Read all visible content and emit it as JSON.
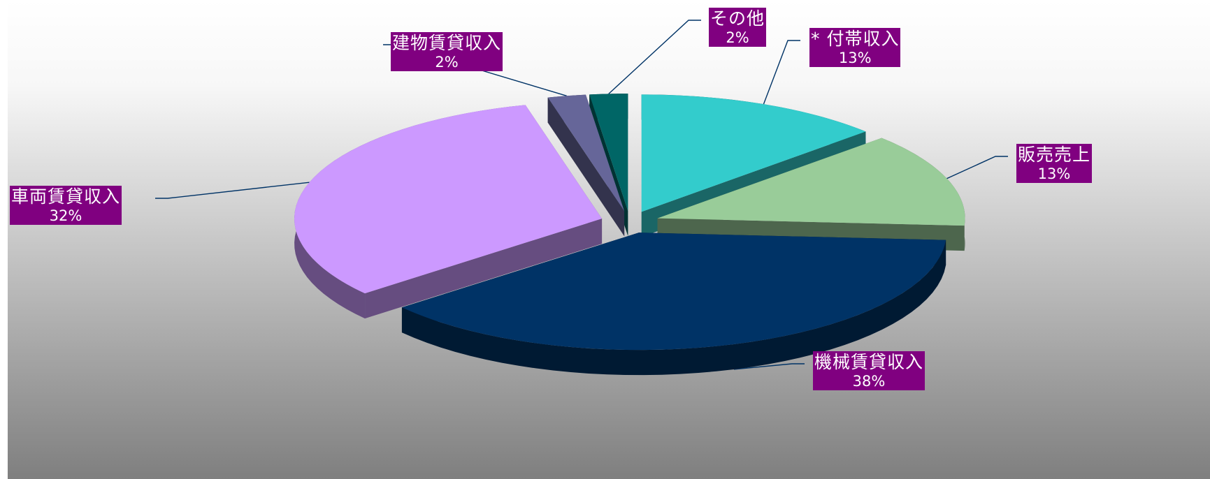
{
  "chart_data": {
    "type": "pie",
    "title": "",
    "slices": [
      {
        "label": "* 付帯収入",
        "percent": "13%",
        "value": 13,
        "color": "#33CCCC",
        "side": "#1A6666"
      },
      {
        "label": "販売売上",
        "percent": "13%",
        "value": 13,
        "color": "#99CC99",
        "side": "#4D664D"
      },
      {
        "label": "機械賃貸収入",
        "percent": "38%",
        "value": 38,
        "color": "#003366",
        "side": "#001A33"
      },
      {
        "label": "車両賃貸収入",
        "percent": "32%",
        "value": 32,
        "color": "#CC99FF",
        "side": "#664D80"
      },
      {
        "label": "建物賃貸収入",
        "percent": "2%",
        "value": 2,
        "color": "#666699",
        "side": "#33334D"
      },
      {
        "label": "その他",
        "percent": "2%",
        "value": 2,
        "color": "#006666",
        "side": "#003333"
      }
    ],
    "label_fill": "#800080",
    "label_text_color": "#FFFFFF",
    "leader_line_color": "#003366",
    "background_gradient": [
      "#FFFFFF",
      "#7F7F7F"
    ]
  }
}
